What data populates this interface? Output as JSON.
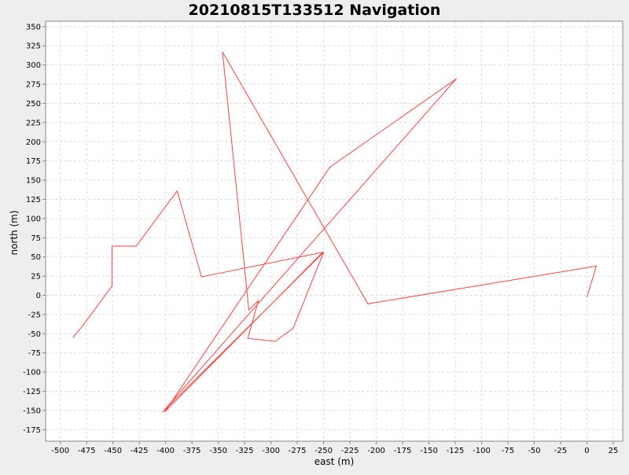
{
  "chart_data": {
    "type": "line",
    "title": "20210815T133512 Navigation",
    "xlabel": "east (m)",
    "ylabel": "north (m)",
    "xlim": [
      -514,
      34
    ],
    "ylim": [
      -190,
      357
    ],
    "xticks": [
      -500,
      -475,
      -450,
      -425,
      -400,
      -375,
      -350,
      -325,
      -300,
      -275,
      -250,
      -225,
      -200,
      -175,
      -150,
      -125,
      -100,
      -75,
      -50,
      -25,
      0,
      25
    ],
    "yticks": [
      -175,
      -150,
      -125,
      -100,
      -75,
      -50,
      -25,
      0,
      25,
      50,
      75,
      100,
      125,
      150,
      175,
      200,
      225,
      250,
      275,
      300,
      325,
      350
    ],
    "grid": true,
    "legend": "none",
    "series": [
      {
        "color": "#ff4444",
        "points": [
          [
            0,
            -2
          ],
          [
            9,
            38
          ],
          [
            -208,
            -11
          ],
          [
            -346,
            317
          ],
          [
            -321,
            -19
          ],
          [
            -312,
            -7
          ],
          [
            -322,
            -56
          ],
          [
            -296,
            -60
          ],
          [
            -279,
            -43
          ],
          [
            -250,
            56
          ],
          [
            -403,
            -152
          ],
          [
            -124,
            282
          ],
          [
            -244,
            167
          ],
          [
            -401,
            -152
          ],
          [
            -251,
            56
          ],
          [
            -366,
            24
          ],
          [
            -389,
            136
          ],
          [
            -428,
            64
          ],
          [
            -451,
            64
          ],
          [
            -451,
            12
          ],
          [
            -479,
            -40
          ],
          [
            -488,
            -55
          ]
        ]
      }
    ]
  },
  "colors": {
    "background": "#eeeeee",
    "plot_background": "#ffffff",
    "grid": "#dddddd",
    "axis": "#888888",
    "line": "#ff4444"
  }
}
